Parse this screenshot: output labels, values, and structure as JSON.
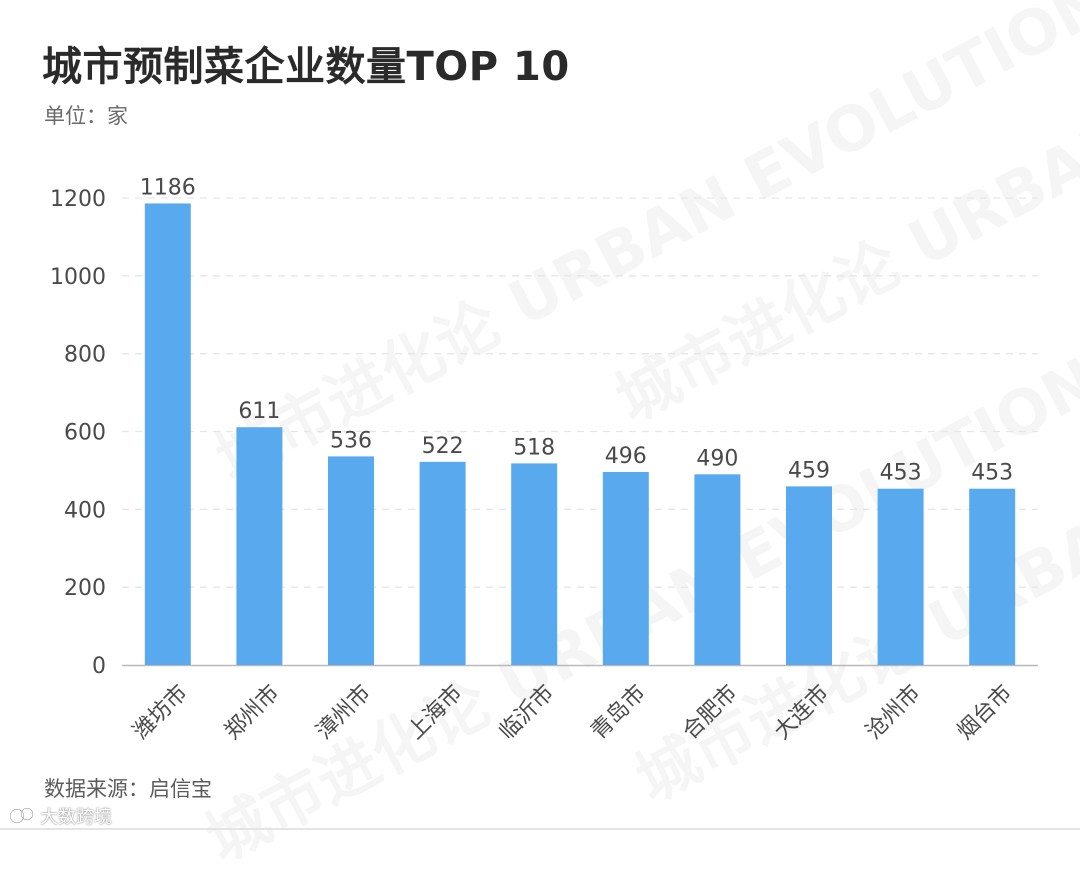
{
  "title": "城市预制菜企业数量TOP 10",
  "unit_label": "单位：家",
  "source_label": "数据来源：启信宝",
  "account_label": "大数跨境",
  "background_watermark": "城市进化论 URBAN EVOLUTION",
  "colors": {
    "bar": "#58a9ee",
    "grid": "#e6e6e6",
    "axis": "#b9b9b9",
    "text": "#4a4a4a"
  },
  "chart_data": {
    "type": "bar",
    "title": "城市预制菜企业数量TOP 10",
    "xlabel": "",
    "ylabel": "",
    "categories": [
      "潍坊市",
      "郑州市",
      "漳州市",
      "上海市",
      "临沂市",
      "青岛市",
      "合肥市",
      "大连市",
      "沧州市",
      "烟台市"
    ],
    "values": [
      1186,
      611,
      536,
      522,
      518,
      496,
      490,
      459,
      453,
      453
    ],
    "ylim": [
      0,
      1200
    ],
    "yticks": [
      0,
      200,
      400,
      600,
      800,
      1000,
      1200
    ],
    "grid": true,
    "data_labels": true
  }
}
